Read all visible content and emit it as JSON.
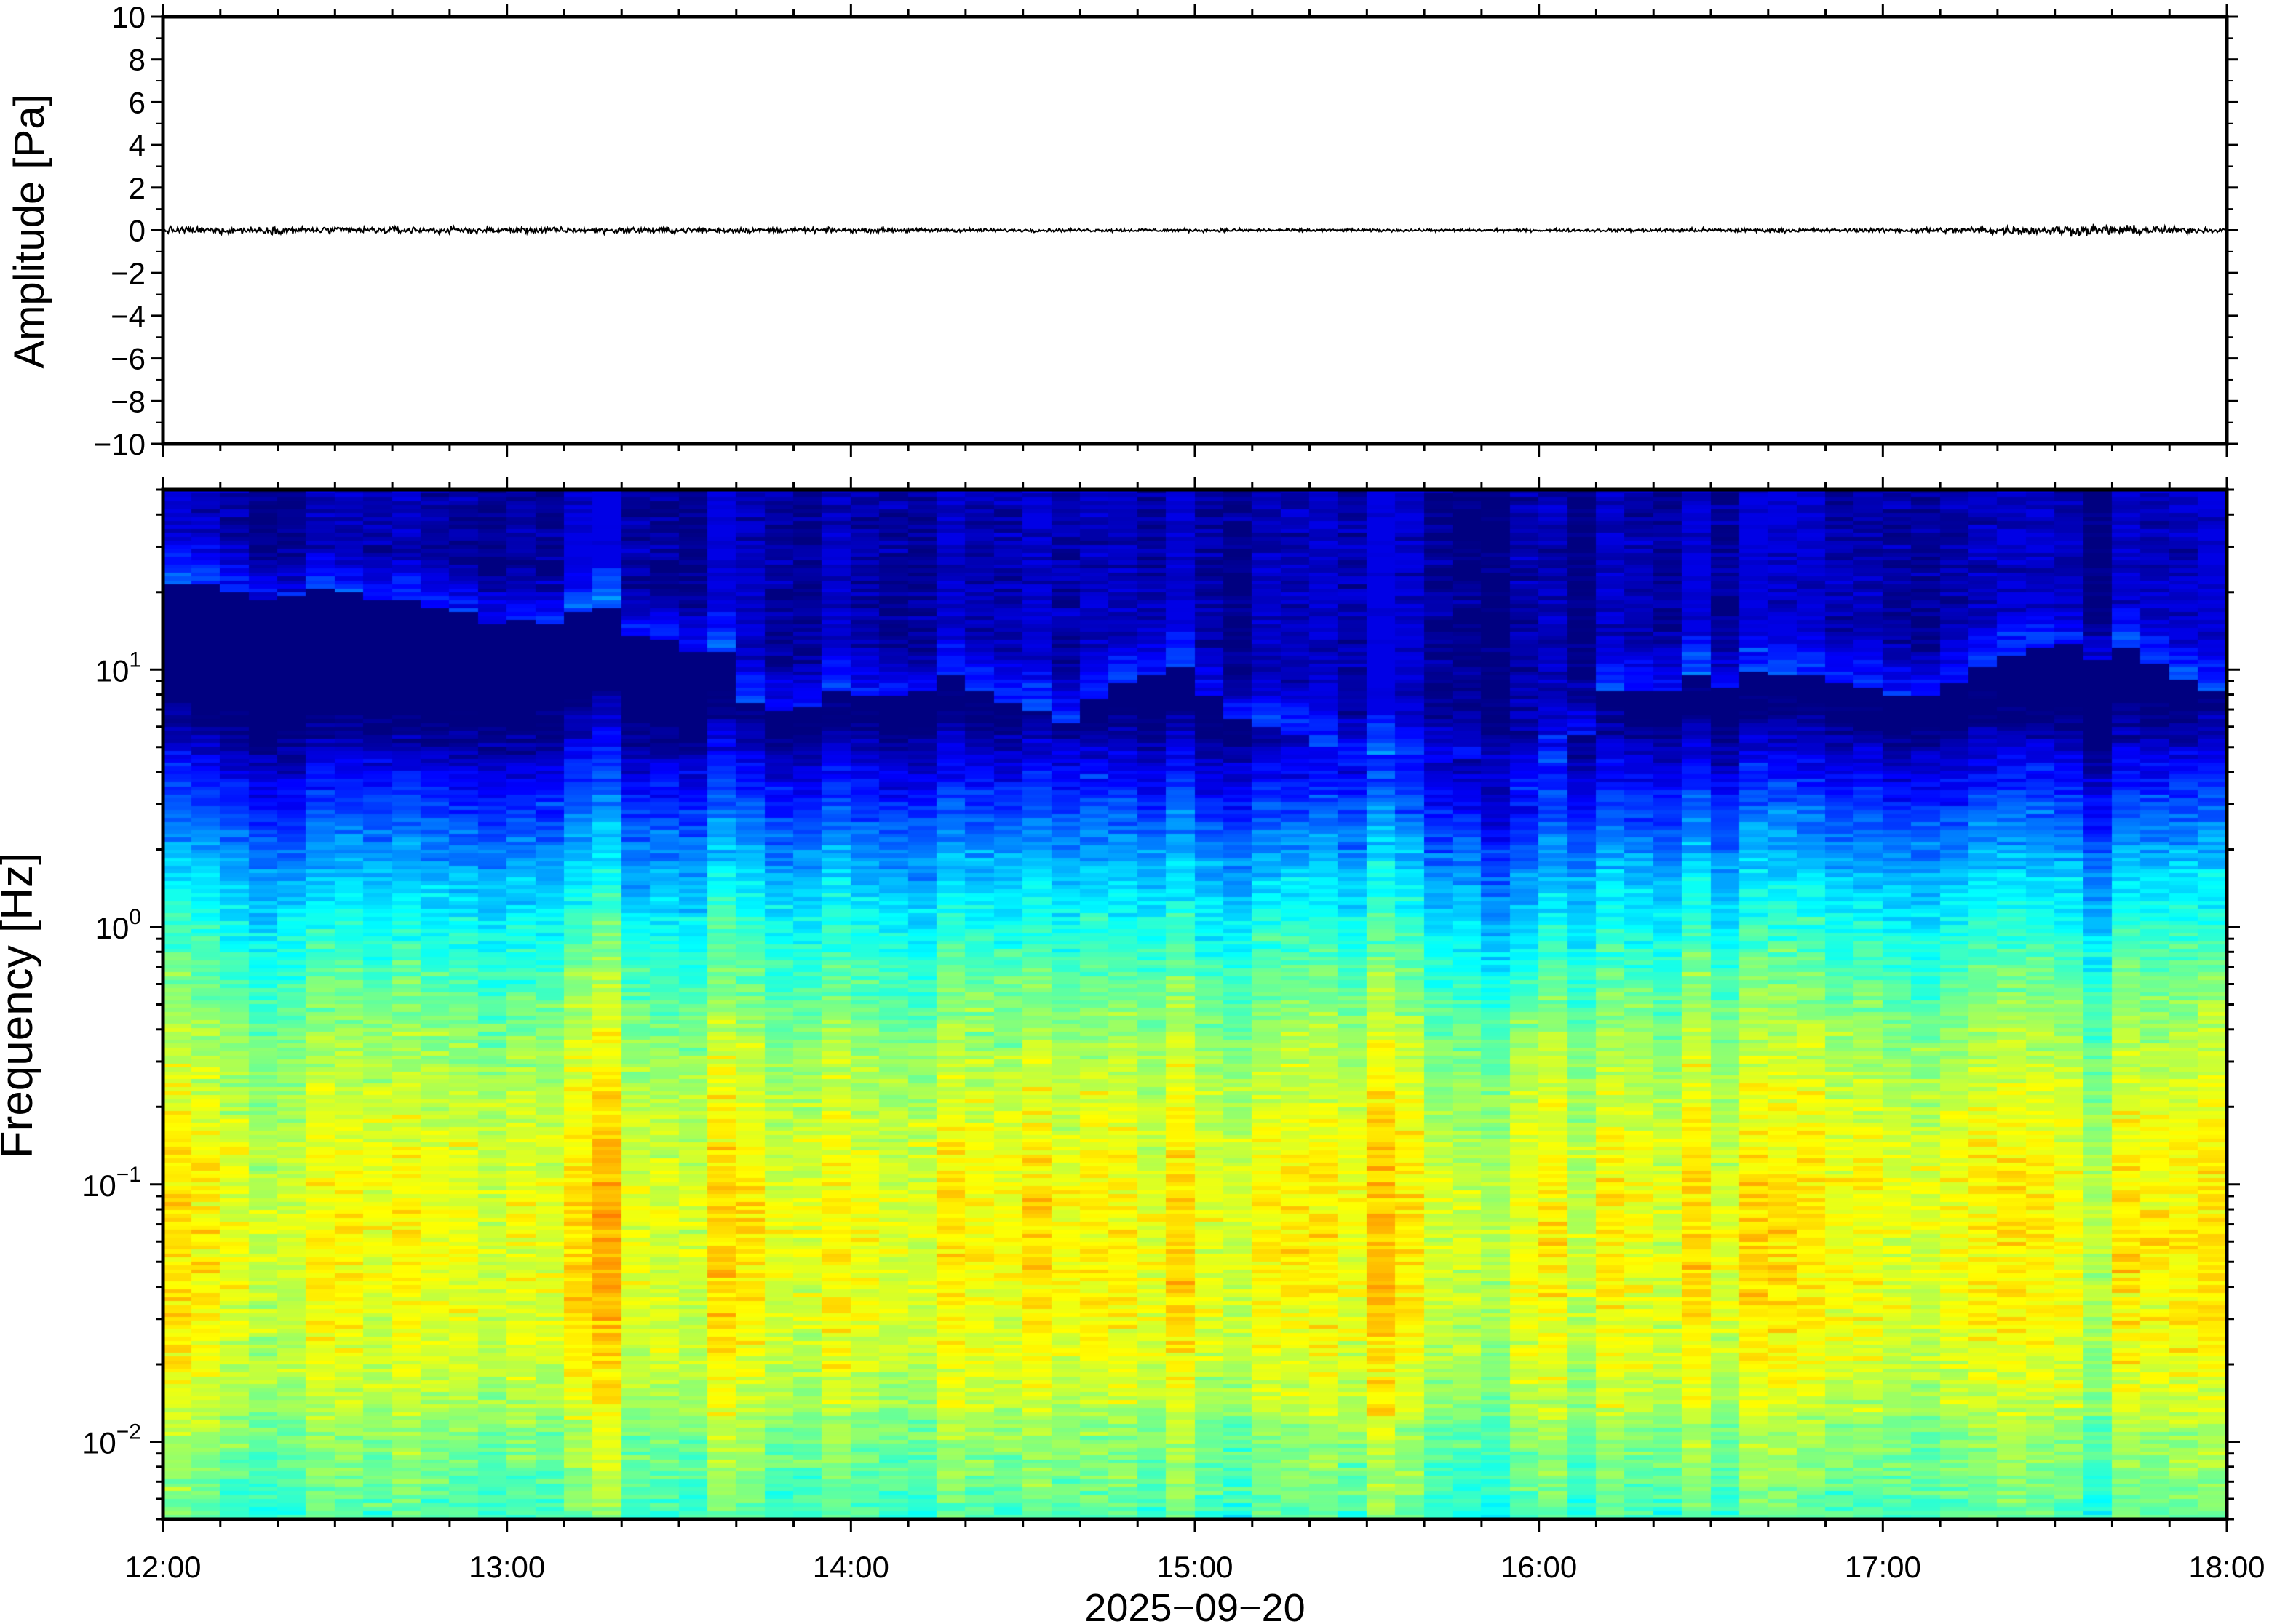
{
  "chart_data": [
    {
      "type": "line",
      "panel": "waveform",
      "ylabel": "Amplitude [Pa]",
      "ylim": [
        -10,
        10
      ],
      "yticks": [
        10,
        8,
        6,
        4,
        2,
        0,
        -2,
        -4,
        -6,
        -8,
        -10
      ],
      "ytick_labels": [
        "10",
        "8",
        "6",
        "4",
        "2",
        "0",
        "−2",
        "−4",
        "−6",
        "−8",
        "−10"
      ],
      "xlim": [
        "12:00",
        "18:00"
      ],
      "series": [
        {
          "x_hours": [
            12.0,
            12.5,
            13.0,
            13.5,
            14.0,
            14.5,
            15.0,
            15.5,
            16.0,
            16.5,
            17.0,
            17.4,
            17.6,
            18.0
          ],
          "envelope_pa": [
            0.25,
            0.25,
            0.22,
            0.22,
            0.15,
            0.12,
            0.12,
            0.1,
            0.1,
            0.15,
            0.15,
            0.3,
            0.4,
            0.15
          ]
        }
      ],
      "line_color": "#000000"
    },
    {
      "type": "heatmap",
      "panel": "spectrogram",
      "ylabel": "Frequency [Hz]",
      "yscale": "log",
      "ylim": [
        0.005,
        50
      ],
      "yticks": [
        10,
        1,
        0.1,
        0.01
      ],
      "ytick_labels": [
        {
          "base": "10",
          "exp": "1"
        },
        {
          "base": "10",
          "exp": "0"
        },
        {
          "base": "10",
          "exp": "−1"
        },
        {
          "base": "10",
          "exp": "−2"
        }
      ],
      "xlabel": "2025−09−20",
      "xlim": [
        "12:00",
        "18:00"
      ],
      "xtick_labels": [
        "12:00",
        "13:00",
        "14:00",
        "15:00",
        "16:00",
        "17:00",
        "18:00"
      ],
      "colormap": "jet",
      "colorbar": false,
      "energy_ceiling_hz": {
        "x_hours": [
          12.0,
          12.3,
          12.6,
          13.0,
          13.3,
          13.6,
          13.7,
          14.0,
          14.3,
          14.6,
          14.9,
          15.2,
          15.5,
          15.8,
          16.0,
          16.2,
          16.5,
          16.8,
          17.1,
          17.3,
          17.6,
          18.0
        ],
        "values": [
          20,
          21,
          19,
          16,
          15,
          12,
          7,
          8,
          9,
          6,
          10,
          6,
          4,
          5,
          3,
          8,
          9,
          9,
          8,
          10,
          13,
          7
        ]
      }
    }
  ]
}
